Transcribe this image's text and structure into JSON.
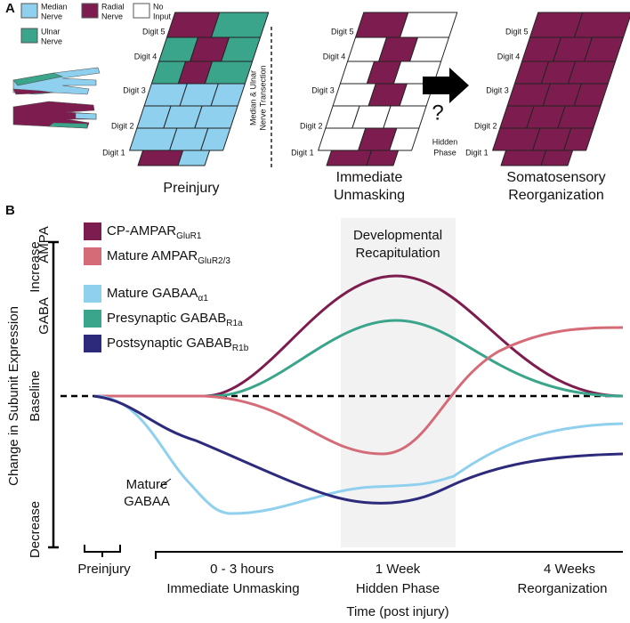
{
  "panel_a": {
    "label": "A",
    "legend": {
      "median": [
        "Median",
        "Nerve"
      ],
      "radial": [
        "Radial",
        "Nerve"
      ],
      "none": [
        "No",
        "Input"
      ],
      "ulnar": [
        "Ulnar",
        "Nerve"
      ]
    },
    "digits": [
      "Digit 5",
      "Digit 4",
      "Digit 3",
      "Digit 2",
      "Digit 1"
    ],
    "transection": [
      "Median & Ulnar",
      "Nerve Transection"
    ],
    "question": "?",
    "hidden_phase": [
      "Hidden",
      "Phase"
    ],
    "captions": [
      [
        "Preinjury"
      ],
      [
        "Immediate",
        "Unmasking"
      ],
      [
        "Somatosensory",
        "Reorganization"
      ]
    ]
  },
  "panel_b": {
    "label": "B",
    "groups": {
      "ampa": "AMPA",
      "gaba": "GABA"
    },
    "legend": [
      {
        "name": "CP-AMPAR",
        "sub": "GluR1"
      },
      {
        "name": "Mature AMPAR",
        "sub": "GluR2/3"
      },
      {
        "name": "Mature GABAA",
        "sub": "α1"
      },
      {
        "name": "Presynaptic GABAB",
        "sub": "R1a"
      },
      {
        "name": "Postsynaptic GABAB",
        "sub": "R1b"
      }
    ],
    "shaded_label": [
      "Developmental",
      "Recapitulation"
    ],
    "annotation": [
      "Mature",
      "GABAA"
    ],
    "y_axis": {
      "title": "Change in Subunit Expression",
      "increase": "Increase",
      "baseline": "Baseline",
      "decrease": "Decrease"
    },
    "x_axis": {
      "title": "Time (post injury)",
      "ticks": [
        [
          "Preinjury"
        ],
        [
          "0 - 3 hours",
          "Immediate Unmasking"
        ],
        [
          "1 Week",
          "Hidden Phase"
        ],
        [
          "4 Weeks",
          "Reorganization"
        ]
      ]
    }
  }
}
